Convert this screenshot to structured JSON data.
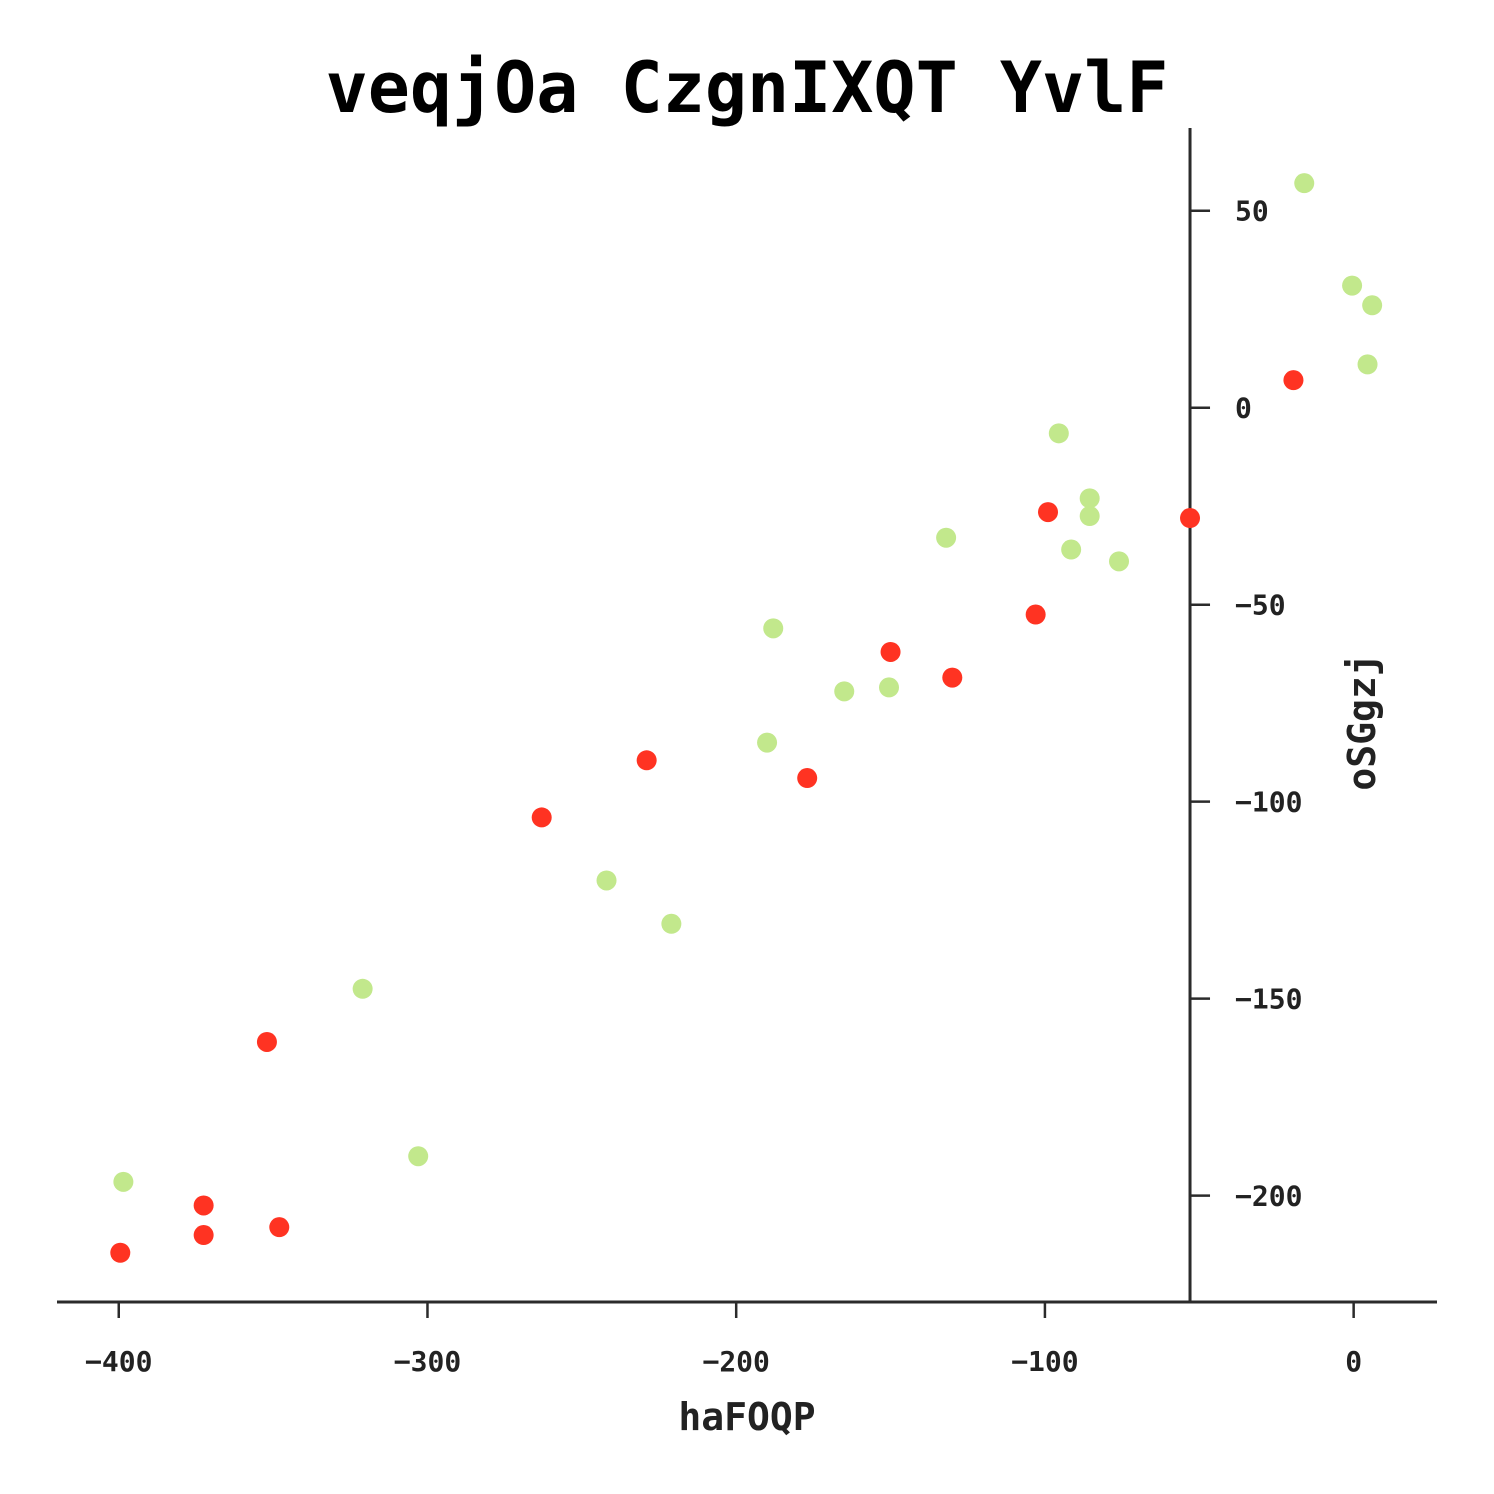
{
  "chart_data": {
    "type": "scatter",
    "title": "veqjOa CzgnIXQT YvlF",
    "xlabel": "haFOQP",
    "ylabel": "oSGgzj",
    "xlim": [
      -420,
      27
    ],
    "ylim": [
      -227,
      71
    ],
    "xticks": [
      -400,
      -300,
      -200,
      -100,
      0
    ],
    "yticks": [
      -200,
      -150,
      -100,
      -50,
      0,
      50
    ],
    "xtick_labels": [
      "−400",
      "−300",
      "−200",
      "−100",
      "0"
    ],
    "ytick_labels": [
      "−200",
      "−150",
      "−100",
      "−50",
      "0",
      "50"
    ],
    "grid": false,
    "legend": "none",
    "series": [
      {
        "color": "#c2e88c",
        "points": [
          [
            -16,
            57
          ],
          [
            -0.5,
            31
          ],
          [
            6,
            26
          ],
          [
            4.5,
            11
          ],
          [
            -95.5,
            -6.5
          ],
          [
            -85.5,
            -23
          ],
          [
            -85.5,
            -27.5
          ],
          [
            -91.5,
            -36
          ],
          [
            -76,
            -39
          ],
          [
            -132,
            -33
          ],
          [
            -188,
            -56
          ],
          [
            -165,
            -72
          ],
          [
            -150.5,
            -71
          ],
          [
            -190,
            -85
          ],
          [
            -242,
            -120
          ],
          [
            -221,
            -131
          ],
          [
            -321,
            -147.5
          ],
          [
            -303,
            -190
          ],
          [
            -398.5,
            -196.5
          ]
        ]
      },
      {
        "color": "#ff3322",
        "points": [
          [
            -19.5,
            7
          ],
          [
            -53,
            -28
          ],
          [
            -99,
            -26.5
          ],
          [
            -103,
            -52.5
          ],
          [
            -150,
            -62
          ],
          [
            -130,
            -68.5
          ],
          [
            -177,
            -94
          ],
          [
            -229,
            -89.5
          ],
          [
            -263,
            -104
          ],
          [
            -352,
            -161
          ],
          [
            -372.5,
            -202.5
          ],
          [
            -372.5,
            -210
          ],
          [
            -348,
            -208
          ],
          [
            -399.5,
            -214.5
          ]
        ]
      }
    ]
  }
}
